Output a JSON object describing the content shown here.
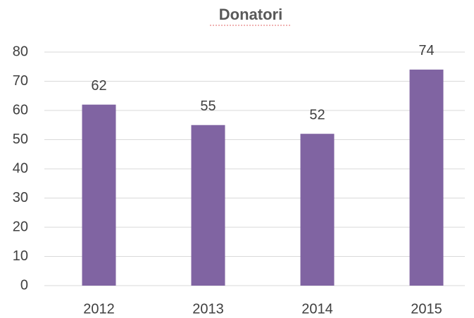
{
  "chart_data": {
    "type": "bar",
    "title": "Donatori",
    "categories": [
      "2012",
      "2013",
      "2014",
      "2015"
    ],
    "values": [
      62,
      55,
      52,
      74
    ],
    "color": "#8064a2",
    "ylim": [
      0,
      80
    ],
    "yticks": [
      0,
      10,
      20,
      30,
      40,
      50,
      60,
      70,
      80
    ],
    "grid": true
  }
}
